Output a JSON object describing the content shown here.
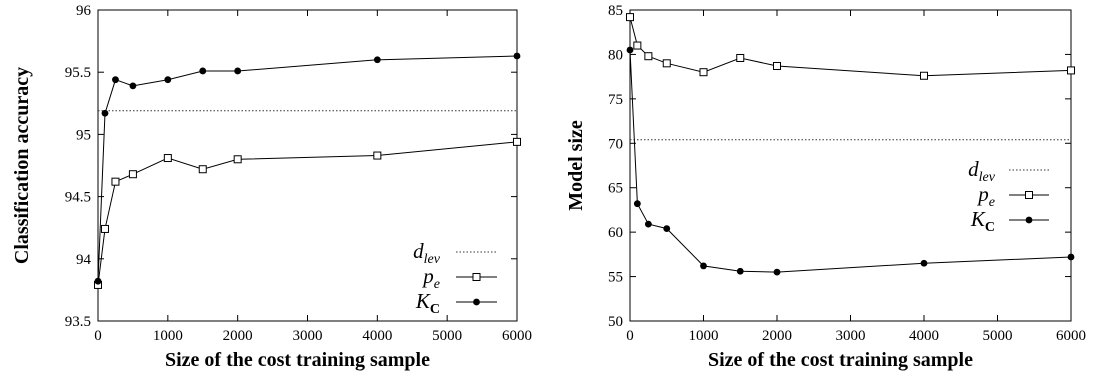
{
  "colors": {
    "axis": "#000000",
    "series": "#000000",
    "baseline": "#333333",
    "background": "#ffffff"
  },
  "chart_data": [
    {
      "type": "line",
      "xlabel": "Size of the cost training sample",
      "ylabel": "Classification accuracy",
      "xlim": [
        0,
        6000
      ],
      "ylim": [
        93.5,
        96
      ],
      "xticks": [
        "0",
        "1000",
        "2000",
        "3000",
        "4000",
        "5000",
        "6000"
      ],
      "yticks": [
        "93.5",
        "94",
        "94.5",
        "95",
        "95.5",
        "96"
      ],
      "grid": false,
      "legend_position": "bottom-right",
      "baseline": {
        "label_main": "d",
        "label_sub": "lev",
        "value": 95.19
      },
      "series": [
        {
          "label_main": "p",
          "label_sub": "e",
          "marker": "open-square",
          "x": [
            0,
            100,
            250,
            500,
            1000,
            1500,
            2000,
            4000,
            6000
          ],
          "y": [
            93.79,
            94.24,
            94.62,
            94.68,
            94.81,
            94.72,
            94.8,
            94.83,
            94.94
          ]
        },
        {
          "label_main": "K",
          "label_sub": "C",
          "marker": "filled-circle",
          "x": [
            0,
            100,
            250,
            500,
            1000,
            1500,
            2000,
            4000,
            6000
          ],
          "y": [
            93.82,
            95.17,
            95.44,
            95.39,
            95.44,
            95.51,
            95.51,
            95.6,
            95.63
          ]
        }
      ]
    },
    {
      "type": "line",
      "xlabel": "Size of the cost training sample",
      "ylabel": "Model size",
      "xlim": [
        0,
        6000
      ],
      "ylim": [
        50,
        85
      ],
      "xticks": [
        "0",
        "1000",
        "2000",
        "3000",
        "4000",
        "5000",
        "6000"
      ],
      "yticks": [
        "50",
        "55",
        "60",
        "65",
        "70",
        "75",
        "80",
        "85"
      ],
      "grid": false,
      "legend_position": "center-right",
      "baseline": {
        "label_main": "d",
        "label_sub": "lev",
        "value": 70.4
      },
      "series": [
        {
          "label_main": "p",
          "label_sub": "e",
          "marker": "open-square",
          "x": [
            0,
            100,
            250,
            500,
            1000,
            1500,
            2000,
            4000,
            6000
          ],
          "y": [
            84.2,
            81.0,
            79.8,
            79.0,
            78.0,
            79.6,
            78.7,
            77.6,
            78.2
          ]
        },
        {
          "label_main": "K",
          "label_sub": "C",
          "marker": "filled-circle",
          "x": [
            0,
            100,
            250,
            500,
            1000,
            1500,
            2000,
            4000,
            6000
          ],
          "y": [
            80.5,
            63.2,
            60.9,
            60.4,
            56.2,
            55.6,
            55.5,
            56.5,
            57.2
          ]
        }
      ]
    }
  ]
}
